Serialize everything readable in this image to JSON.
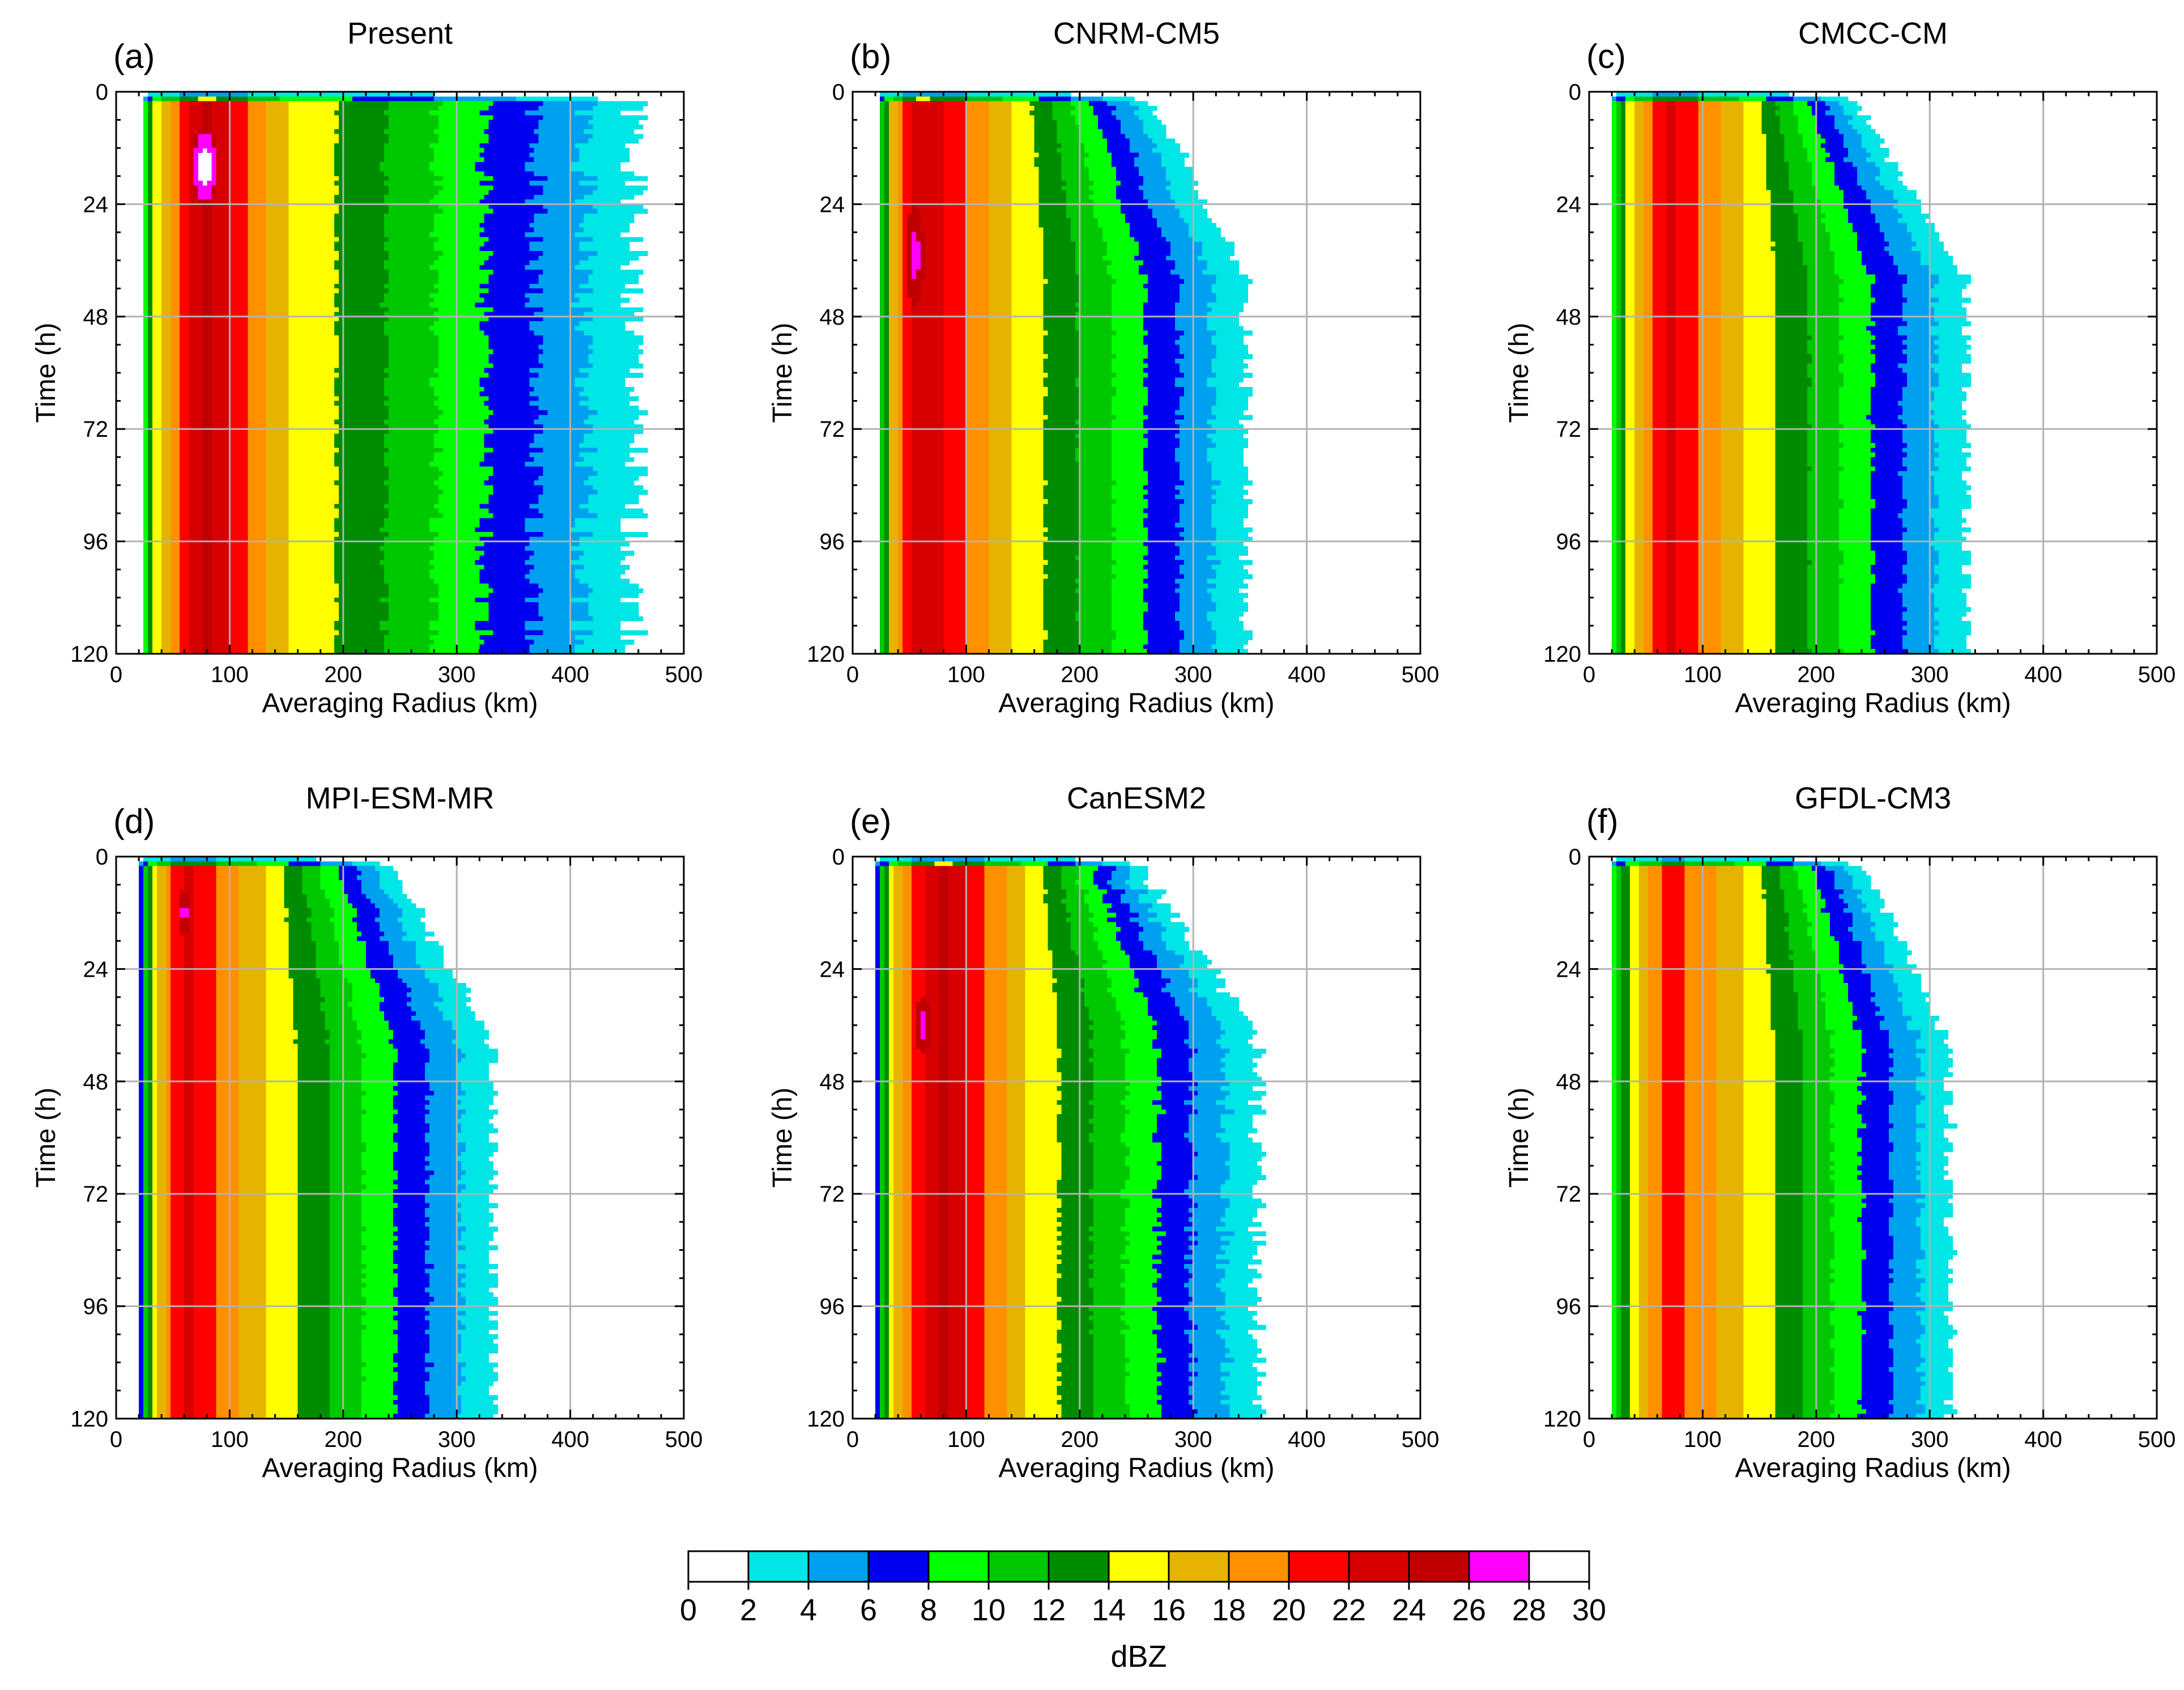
{
  "figure": {
    "colorbar": {
      "levels": [
        0,
        2,
        4,
        6,
        8,
        10,
        12,
        14,
        16,
        18,
        20,
        22,
        24,
        26,
        28,
        30
      ],
      "tick_labels": [
        "0",
        "2",
        "4",
        "6",
        "8",
        "10",
        "12",
        "14",
        "16",
        "18",
        "20",
        "22",
        "24",
        "26",
        "28",
        "30"
      ],
      "colors": [
        "#ffffff",
        "#00e5e5",
        "#00a0f0",
        "#0000f0",
        "#00ff00",
        "#00c800",
        "#008c00",
        "#ffff00",
        "#e6b400",
        "#ff9000",
        "#ff0000",
        "#d60000",
        "#c00000",
        "#ff00ff",
        "#ffffff"
      ],
      "label": "dBZ"
    }
  },
  "chart_data": [
    {
      "type": "heatmap",
      "panel": "(a)",
      "title": "Present",
      "xlabel": "Averaging Radius (km)",
      "ylabel": "Time (h)",
      "xlim": [
        0,
        500
      ],
      "ylim": [
        120,
        0
      ],
      "xticks": [
        "0",
        "100",
        "200",
        "300",
        "400",
        "500"
      ],
      "yticks": [
        "0",
        "24",
        "48",
        "72",
        "96",
        "120"
      ],
      "profile": {
        "r_inner": 22,
        "r_peak": 80,
        "w_in": 50,
        "w_out": 70,
        "v_peak": 24.5,
        "r_outer": 460,
        "r_outer_start": 460,
        "jitter": 14,
        "seed": 1,
        "hot": {
          "r": 78,
          "t": 16,
          "rr": 12,
          "rt": 9,
          "v": 29
        }
      }
    },
    {
      "type": "heatmap",
      "panel": "(b)",
      "title": "CNRM-CM5",
      "xlabel": "Averaging Radius (km)",
      "ylabel": "Time (h)",
      "xlim": [
        0,
        500
      ],
      "ylim": [
        120,
        0
      ],
      "xticks": [
        "0",
        "100",
        "200",
        "300",
        "400",
        "500"
      ],
      "yticks": [
        "0",
        "24",
        "48",
        "72",
        "96",
        "120"
      ],
      "profile": {
        "r_inner": 22,
        "r_peak": 60,
        "w_in": 35,
        "w_out": 80,
        "v_peak": 24,
        "r_outer": 350,
        "r_outer_start": 260,
        "jitter": 6,
        "seed": 2,
        "hot": {
          "r": 55,
          "t": 35,
          "rr": 8,
          "rt": 11,
          "v": 26.5
        }
      }
    },
    {
      "type": "heatmap",
      "panel": "(c)",
      "title": "CMCC-CM",
      "xlabel": "Averaging Radius (km)",
      "ylabel": "Time (h)",
      "xlim": [
        0,
        500
      ],
      "ylim": [
        120,
        0
      ],
      "xticks": [
        "0",
        "100",
        "200",
        "300",
        "400",
        "500"
      ],
      "yticks": [
        "0",
        "24",
        "48",
        "72",
        "96",
        "120"
      ],
      "profile": {
        "r_inner": 18,
        "r_peak": 72,
        "w_in": 45,
        "w_out": 65,
        "v_peak": 22.5,
        "r_outer": 335,
        "r_outer_start": 230,
        "jitter": 5,
        "seed": 3,
        "hot": null
      }
    },
    {
      "type": "heatmap",
      "panel": "(d)",
      "title": "MPI-ESM-MR",
      "xlabel": "Averaging Radius (km)",
      "ylabel": "Time (h)",
      "xlim": [
        0,
        500
      ],
      "ylim": [
        120,
        0
      ],
      "xticks": [
        "0",
        "100",
        "200",
        "300",
        "400",
        "500"
      ],
      "yticks": [
        "0",
        "24",
        "48",
        "72",
        "96",
        "120"
      ],
      "profile": {
        "r_inner": 20,
        "r_peak": 62,
        "w_in": 40,
        "w_out": 68,
        "v_peak": 22.5,
        "r_outer": 335,
        "r_outer_start": 240,
        "jitter": 6,
        "seed": 4,
        "hot": {
          "r": 60,
          "t": 12,
          "rr": 6,
          "rt": 5,
          "v": 26.5
        }
      }
    },
    {
      "type": "heatmap",
      "panel": "(e)",
      "title": "CanESM2",
      "xlabel": "Averaging Radius (km)",
      "ylabel": "Time (h)",
      "xlim": [
        0,
        500
      ],
      "ylim": [
        120,
        0
      ],
      "xticks": [
        "0",
        "100",
        "200",
        "300",
        "400",
        "500"
      ],
      "yticks": [
        "0",
        "24",
        "48",
        "72",
        "96",
        "120"
      ],
      "profile": {
        "r_inner": 20,
        "r_peak": 78,
        "w_in": 55,
        "w_out": 75,
        "v_peak": 24.5,
        "r_outer": 360,
        "r_outer_start": 250,
        "jitter": 9,
        "seed": 5,
        "hot": {
          "r": 62,
          "t": 36,
          "rr": 8,
          "rt": 6,
          "v": 26.5
        }
      }
    },
    {
      "type": "heatmap",
      "panel": "(f)",
      "title": "GFDL-CM3",
      "xlabel": "Averaging Radius (km)",
      "ylabel": "Time (h)",
      "xlim": [
        0,
        500
      ],
      "ylim": [
        120,
        0
      ],
      "xticks": [
        "0",
        "100",
        "200",
        "300",
        "400",
        "500"
      ],
      "yticks": [
        "0",
        "24",
        "48",
        "72",
        "96",
        "120"
      ],
      "profile": {
        "r_inner": 18,
        "r_peak": 72,
        "w_in": 45,
        "w_out": 65,
        "v_peak": 21,
        "r_outer": 320,
        "r_outer_start": 240,
        "jitter": 5,
        "seed": 6,
        "hot": null
      }
    }
  ]
}
